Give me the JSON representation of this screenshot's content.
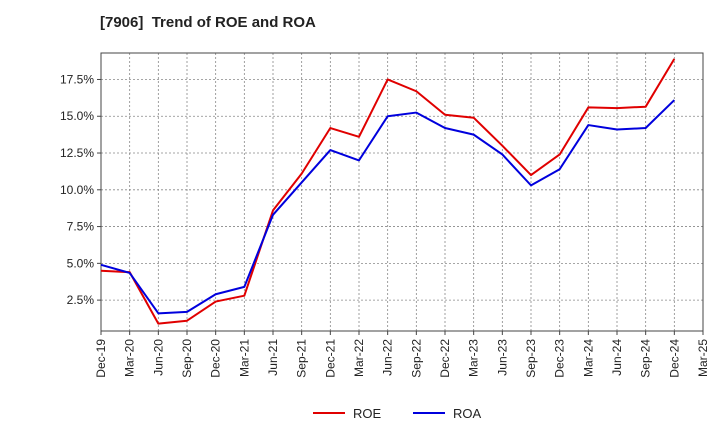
{
  "chart_data": {
    "type": "line",
    "title": "[7906]  Trend of ROE and ROA",
    "xlabel": "",
    "ylabel": "",
    "categories": [
      "Dec-19",
      "Mar-20",
      "Jun-20",
      "Sep-20",
      "Dec-20",
      "Mar-21",
      "Jun-21",
      "Sep-21",
      "Dec-21",
      "Mar-22",
      "Jun-22",
      "Sep-22",
      "Dec-22",
      "Mar-23",
      "Jun-23",
      "Sep-23",
      "Dec-23",
      "Mar-24",
      "Jun-24",
      "Sep-24",
      "Dec-24",
      "Mar-25"
    ],
    "ylim": [
      0.4,
      19.3
    ],
    "yticks": [
      2.5,
      5.0,
      7.5,
      10.0,
      12.5,
      15.0,
      17.5
    ],
    "ytick_labels": [
      "2.5%",
      "5.0%",
      "7.5%",
      "10.0%",
      "12.5%",
      "15.0%",
      "17.5%"
    ],
    "grid": true,
    "legend_position": "bottom",
    "series": [
      {
        "name": "ROE",
        "color": "#e00000",
        "values": [
          4.5,
          4.4,
          0.9,
          1.1,
          2.4,
          2.8,
          8.6,
          11.1,
          14.2,
          13.6,
          17.5,
          16.7,
          15.1,
          14.9,
          13.0,
          11.0,
          12.4,
          15.6,
          15.55,
          15.65,
          18.9,
          null
        ]
      },
      {
        "name": "ROA",
        "color": "#0000dd",
        "values": [
          4.9,
          4.35,
          1.6,
          1.7,
          2.9,
          3.4,
          8.3,
          10.5,
          12.7,
          12.0,
          15.0,
          15.25,
          14.2,
          13.75,
          12.4,
          10.3,
          11.4,
          14.4,
          14.1,
          14.2,
          16.1,
          null
        ]
      }
    ]
  }
}
